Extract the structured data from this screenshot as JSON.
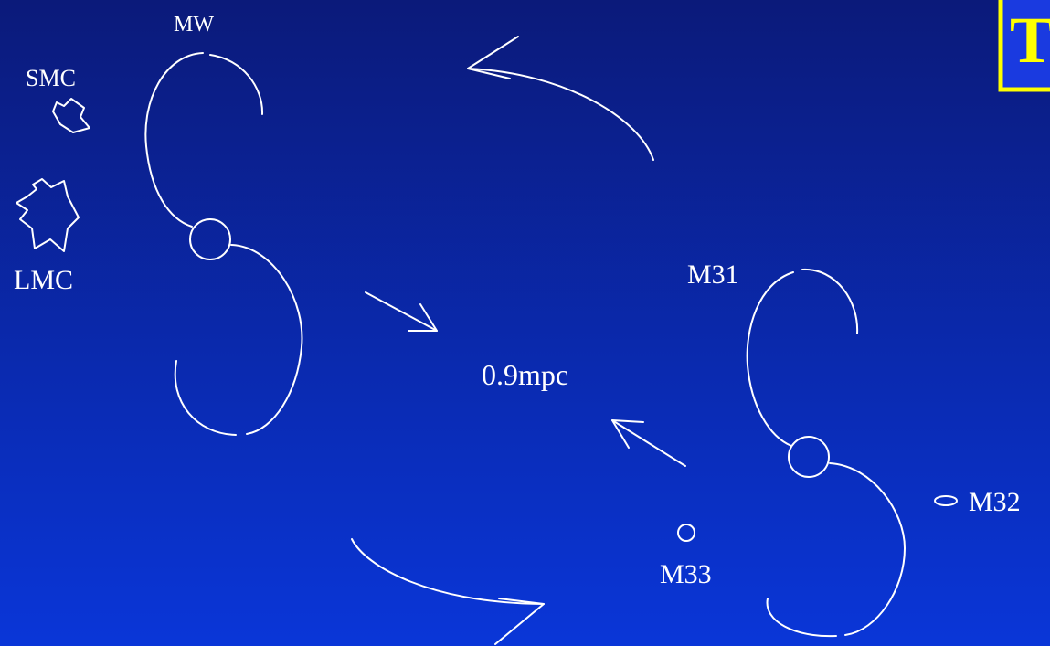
{
  "title": "The",
  "nodes": [
    {
      "label": "MW"
    },
    {
      "label": "SMC"
    },
    {
      "label": "LMC"
    },
    {
      "label": "M31"
    },
    {
      "label": "0.9mpc"
    },
    {
      "label": "M33"
    },
    {
      "label": "M32"
    }
  ]
}
